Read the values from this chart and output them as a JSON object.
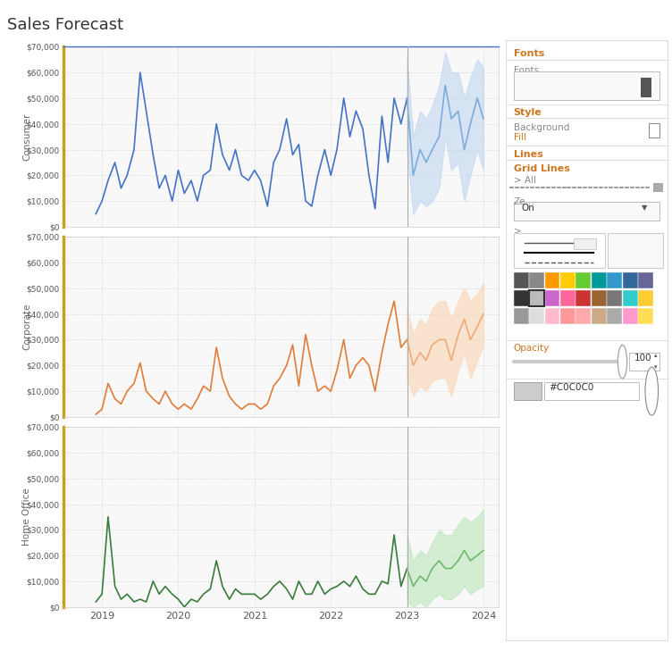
{
  "title": "Sales Forecast",
  "title_fontsize": 13,
  "title_color": "#333333",
  "background_color": "#ffffff",
  "border_color": "#cccccc",
  "grid_color": "#cccccc",
  "grid_style": ":",
  "y_ticks": [
    0,
    10000,
    20000,
    30000,
    40000,
    50000,
    60000,
    70000
  ],
  "ylim": [
    0,
    70000
  ],
  "x_ticks": [
    2019,
    2020,
    2021,
    2022,
    2023,
    2024
  ],
  "xlim": [
    2018.5,
    2024.2
  ],
  "row_labels": [
    "Consumer",
    "Corporate",
    "Home Office"
  ],
  "forecast_start": 2023.0,
  "series": {
    "Consumer": {
      "color": "#4472C4",
      "forecast_color": "#7aacdc",
      "fill_color": "#c5d8f0",
      "actual_x": [
        2018.92,
        2019.0,
        2019.08,
        2019.17,
        2019.25,
        2019.33,
        2019.42,
        2019.5,
        2019.58,
        2019.67,
        2019.75,
        2019.83,
        2019.92,
        2020.0,
        2020.08,
        2020.17,
        2020.25,
        2020.33,
        2020.42,
        2020.5,
        2020.58,
        2020.67,
        2020.75,
        2020.83,
        2020.92,
        2021.0,
        2021.08,
        2021.17,
        2021.25,
        2021.33,
        2021.42,
        2021.5,
        2021.58,
        2021.67,
        2021.75,
        2021.83,
        2021.92,
        2022.0,
        2022.08,
        2022.17,
        2022.25,
        2022.33,
        2022.42,
        2022.5,
        2022.58,
        2022.67,
        2022.75,
        2022.83,
        2022.92,
        2023.0
      ],
      "actual_y": [
        5000,
        10000,
        18000,
        25000,
        15000,
        20000,
        30000,
        60000,
        45000,
        28000,
        15000,
        20000,
        10000,
        22000,
        13000,
        18000,
        10000,
        20000,
        22000,
        40000,
        28000,
        22000,
        30000,
        20000,
        18000,
        22000,
        18000,
        8000,
        25000,
        30000,
        42000,
        28000,
        32000,
        10000,
        8000,
        20000,
        30000,
        20000,
        30000,
        50000,
        35000,
        45000,
        38000,
        20000,
        7000,
        43000,
        25000,
        50000,
        40000,
        50000
      ],
      "forecast_x": [
        2023.0,
        2023.08,
        2023.17,
        2023.25,
        2023.33,
        2023.42,
        2023.5,
        2023.58,
        2023.67,
        2023.75,
        2023.83,
        2023.92,
        2024.0
      ],
      "forecast_y": [
        50000,
        20000,
        30000,
        25000,
        30000,
        35000,
        55000,
        42000,
        45000,
        30000,
        40000,
        50000,
        42000
      ],
      "ci_upper": [
        65000,
        35000,
        45000,
        42000,
        47000,
        55000,
        68000,
        60000,
        60000,
        50000,
        58000,
        65000,
        62000
      ],
      "ci_lower": [
        30000,
        5000,
        10000,
        8000,
        10000,
        15000,
        35000,
        22000,
        25000,
        10000,
        20000,
        30000,
        22000
      ]
    },
    "Corporate": {
      "color": "#E07B39",
      "forecast_color": "#f0aa77",
      "fill_color": "#fad9b8",
      "actual_x": [
        2018.92,
        2019.0,
        2019.08,
        2019.17,
        2019.25,
        2019.33,
        2019.42,
        2019.5,
        2019.58,
        2019.67,
        2019.75,
        2019.83,
        2019.92,
        2020.0,
        2020.08,
        2020.17,
        2020.25,
        2020.33,
        2020.42,
        2020.5,
        2020.58,
        2020.67,
        2020.75,
        2020.83,
        2020.92,
        2021.0,
        2021.08,
        2021.17,
        2021.25,
        2021.33,
        2021.42,
        2021.5,
        2021.58,
        2021.67,
        2021.75,
        2021.83,
        2021.92,
        2022.0,
        2022.08,
        2022.17,
        2022.25,
        2022.33,
        2022.42,
        2022.5,
        2022.58,
        2022.67,
        2022.75,
        2022.83,
        2022.92,
        2023.0
      ],
      "actual_y": [
        1000,
        3000,
        13000,
        7000,
        5000,
        10000,
        13000,
        21000,
        10000,
        7000,
        5000,
        10000,
        5000,
        3000,
        5000,
        3000,
        7000,
        12000,
        10000,
        27000,
        15000,
        8000,
        5000,
        3000,
        5000,
        5000,
        3000,
        5000,
        12000,
        15000,
        20000,
        28000,
        12000,
        32000,
        20000,
        10000,
        12000,
        10000,
        18000,
        30000,
        15000,
        20000,
        23000,
        20000,
        10000,
        25000,
        36000,
        45000,
        27000,
        30000
      ],
      "forecast_x": [
        2023.0,
        2023.08,
        2023.17,
        2023.25,
        2023.33,
        2023.42,
        2023.5,
        2023.58,
        2023.67,
        2023.75,
        2023.83,
        2023.92,
        2024.0
      ],
      "forecast_y": [
        30000,
        20000,
        25000,
        22000,
        28000,
        30000,
        30000,
        22000,
        32000,
        38000,
        30000,
        35000,
        40000
      ],
      "ci_upper": [
        42000,
        32000,
        38000,
        36000,
        42000,
        45000,
        45000,
        38000,
        45000,
        50000,
        45000,
        48000,
        52000
      ],
      "ci_lower": [
        15000,
        8000,
        12000,
        10000,
        14000,
        15000,
        15000,
        8000,
        18000,
        25000,
        15000,
        22000,
        28000
      ]
    },
    "Home Office": {
      "color": "#3a7a3a",
      "forecast_color": "#70b870",
      "fill_color": "#c0e8c0",
      "actual_x": [
        2018.92,
        2019.0,
        2019.08,
        2019.17,
        2019.25,
        2019.33,
        2019.42,
        2019.5,
        2019.58,
        2019.67,
        2019.75,
        2019.83,
        2019.92,
        2020.0,
        2020.08,
        2020.17,
        2020.25,
        2020.33,
        2020.42,
        2020.5,
        2020.58,
        2020.67,
        2020.75,
        2020.83,
        2020.92,
        2021.0,
        2021.08,
        2021.17,
        2021.25,
        2021.33,
        2021.42,
        2021.5,
        2021.58,
        2021.67,
        2021.75,
        2021.83,
        2021.92,
        2022.0,
        2022.08,
        2022.17,
        2022.25,
        2022.33,
        2022.42,
        2022.5,
        2022.58,
        2022.67,
        2022.75,
        2022.83,
        2022.92,
        2023.0
      ],
      "actual_y": [
        2000,
        5000,
        35000,
        8000,
        3000,
        5000,
        2000,
        3000,
        2000,
        10000,
        5000,
        8000,
        5000,
        3000,
        0,
        3000,
        2000,
        5000,
        7000,
        18000,
        8000,
        3000,
        7000,
        5000,
        5000,
        5000,
        3000,
        5000,
        8000,
        10000,
        7000,
        3000,
        10000,
        5000,
        5000,
        10000,
        5000,
        7000,
        8000,
        10000,
        8000,
        12000,
        7000,
        5000,
        5000,
        10000,
        9000,
        28000,
        8000,
        15000
      ],
      "forecast_x": [
        2023.0,
        2023.08,
        2023.17,
        2023.25,
        2023.33,
        2023.42,
        2023.5,
        2023.58,
        2023.67,
        2023.75,
        2023.83,
        2023.92,
        2024.0
      ],
      "forecast_y": [
        15000,
        8000,
        12000,
        10000,
        15000,
        18000,
        15000,
        15000,
        18000,
        22000,
        18000,
        20000,
        22000
      ],
      "ci_upper": [
        28000,
        18000,
        22000,
        20000,
        25000,
        30000,
        28000,
        28000,
        32000,
        35000,
        33000,
        35000,
        38000
      ],
      "ci_lower": [
        2000,
        0,
        2000,
        0,
        3000,
        5000,
        3000,
        3000,
        5000,
        8000,
        5000,
        7000,
        8000
      ]
    }
  },
  "row_label_border_color": "#C8A020",
  "top_border_color": "#E87070",
  "panel_border_color": "#4472C4",
  "rp_orange": "#cc7722",
  "rp_gray": "#888888",
  "rp_dark": "#333333",
  "rp_light_border": "#dddddd",
  "palette_colors": [
    [
      "#555555",
      "#888888",
      "#ff9900",
      "#ffcc00",
      "#66cc33",
      "#009999",
      "#3399cc",
      "#336699",
      "#666699"
    ],
    [
      "#333333",
      "#bbbbbb",
      "#cc66cc",
      "#ff6699",
      "#cc3333",
      "#996633",
      "#777777",
      "#33cccc",
      "#ffcc33"
    ],
    [
      "#999999",
      "#dddddd",
      "#ffbbcc",
      "#ff9999",
      "#ffaaaa",
      "#ccaa88",
      "#aaaaaa",
      "#ff99cc",
      "#ffdd55"
    ]
  ]
}
